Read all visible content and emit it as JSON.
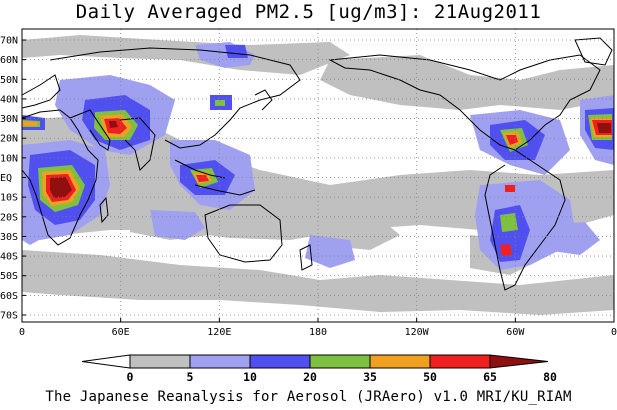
{
  "title": "Daily Averaged PM2.5 [ug/m3]: 21Aug2011",
  "footer": "The Japanese Reanalysis for Aerosol (JRAero) v1.0 MRI/KU_RIAM",
  "lat_labels": [
    "70N",
    "60N",
    "50N",
    "40N",
    "30N",
    "20N",
    "10N",
    "EQ",
    "10S",
    "20S",
    "30S",
    "40S",
    "50S",
    "60S",
    "70S"
  ],
  "lon_labels": [
    "0",
    "60E",
    "120E",
    "180",
    "120W",
    "60W",
    "0"
  ],
  "colorbar": {
    "labels": [
      "0",
      "5",
      "10",
      "20",
      "35",
      "50",
      "65",
      "80"
    ],
    "colors": [
      "#ffffff",
      "#c0c0c0",
      "#a0a0f0",
      "#5050f0",
      "#80c040",
      "#f0a020",
      "#f02020",
      "#901010"
    ]
  },
  "levels": {
    "gray": "#c0c0c0",
    "light_blue": "#a0a0f0",
    "blue": "#5050f0",
    "green": "#80c040",
    "orange": "#f0a020",
    "red": "#f02020",
    "dark_red": "#901010"
  }
}
